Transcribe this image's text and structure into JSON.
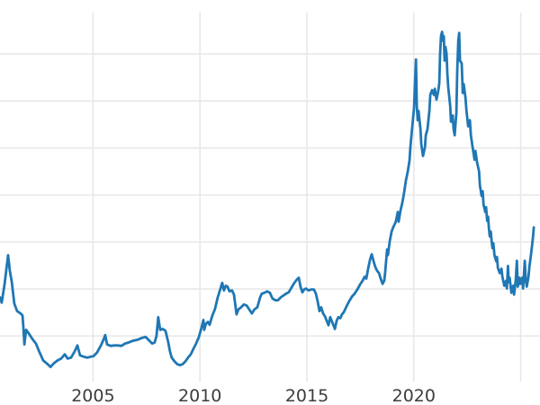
{
  "colors": {
    "line": "#1f77b4",
    "grid": "#e8e8e8",
    "tick_label": "#3d3d3d",
    "background": "#ffffff"
  },
  "chart_data": {
    "type": "line",
    "title": "",
    "xlabel": "",
    "ylabel": "",
    "grid": true,
    "legend": false,
    "x_axis": {
      "tick_labels": [
        "2005",
        "2010",
        "2015",
        "2020"
      ],
      "tick_values": [
        2005,
        2010,
        2015,
        2020
      ],
      "gridline_values": [
        2005,
        2010,
        2015,
        2020,
        2025
      ],
      "range": [
        2000.65,
        2025.9
      ]
    },
    "y_axis": {
      "tick_labels_visible": false,
      "unit": "gridline-units (axis labels cropped out of view)",
      "gridline_values": [
        1,
        2,
        3,
        4,
        5,
        6,
        7
      ],
      "range": [
        0.03,
        7.88
      ]
    },
    "series": [
      {
        "name": "",
        "color": "#1f77b4",
        "points": [
          [
            2000.65,
            1.82
          ],
          [
            2000.73,
            1.71
          ],
          [
            2000.86,
            2.09
          ],
          [
            2000.94,
            2.39
          ],
          [
            2001.03,
            2.72
          ],
          [
            2001.11,
            2.39
          ],
          [
            2001.2,
            2.15
          ],
          [
            2001.32,
            1.69
          ],
          [
            2001.45,
            1.53
          ],
          [
            2001.58,
            1.49
          ],
          [
            2001.7,
            1.44
          ],
          [
            2001.74,
            1.21
          ],
          [
            2001.79,
            0.82
          ],
          [
            2001.87,
            1.13
          ],
          [
            2002.0,
            1.05
          ],
          [
            2002.16,
            0.94
          ],
          [
            2002.33,
            0.84
          ],
          [
            2002.5,
            0.65
          ],
          [
            2002.67,
            0.48
          ],
          [
            2002.88,
            0.4
          ],
          [
            2003.01,
            0.34
          ],
          [
            2003.17,
            0.42
          ],
          [
            2003.34,
            0.48
          ],
          [
            2003.51,
            0.52
          ],
          [
            2003.68,
            0.61
          ],
          [
            2003.81,
            0.52
          ],
          [
            2003.97,
            0.54
          ],
          [
            2004.14,
            0.67
          ],
          [
            2004.27,
            0.8
          ],
          [
            2004.39,
            0.59
          ],
          [
            2004.56,
            0.56
          ],
          [
            2004.73,
            0.54
          ],
          [
            2004.9,
            0.56
          ],
          [
            2005.02,
            0.57
          ],
          [
            2005.19,
            0.65
          ],
          [
            2005.36,
            0.79
          ],
          [
            2005.49,
            0.92
          ],
          [
            2005.57,
            1.02
          ],
          [
            2005.66,
            0.82
          ],
          [
            2005.82,
            0.79
          ],
          [
            2005.99,
            0.8
          ],
          [
            2006.16,
            0.8
          ],
          [
            2006.33,
            0.79
          ],
          [
            2006.5,
            0.84
          ],
          [
            2006.66,
            0.86
          ],
          [
            2006.87,
            0.9
          ],
          [
            2007.08,
            0.92
          ],
          [
            2007.29,
            0.96
          ],
          [
            2007.46,
            0.98
          ],
          [
            2007.59,
            0.92
          ],
          [
            2007.76,
            0.84
          ],
          [
            2007.88,
            0.86
          ],
          [
            2007.97,
            1.0
          ],
          [
            2008.05,
            1.4
          ],
          [
            2008.14,
            1.13
          ],
          [
            2008.26,
            1.15
          ],
          [
            2008.39,
            1.11
          ],
          [
            2008.52,
            0.86
          ],
          [
            2008.6,
            0.67
          ],
          [
            2008.68,
            0.54
          ],
          [
            2008.81,
            0.46
          ],
          [
            2008.94,
            0.4
          ],
          [
            2009.06,
            0.38
          ],
          [
            2009.19,
            0.4
          ],
          [
            2009.32,
            0.46
          ],
          [
            2009.44,
            0.54
          ],
          [
            2009.57,
            0.61
          ],
          [
            2009.7,
            0.73
          ],
          [
            2009.82,
            0.84
          ],
          [
            2009.95,
            0.98
          ],
          [
            2010.07,
            1.17
          ],
          [
            2010.16,
            1.34
          ],
          [
            2010.2,
            1.13
          ],
          [
            2010.28,
            1.26
          ],
          [
            2010.37,
            1.3
          ],
          [
            2010.45,
            1.24
          ],
          [
            2010.58,
            1.44
          ],
          [
            2010.7,
            1.57
          ],
          [
            2010.83,
            1.82
          ],
          [
            2010.96,
            2.01
          ],
          [
            2011.04,
            2.13
          ],
          [
            2011.12,
            1.97
          ],
          [
            2011.21,
            2.07
          ],
          [
            2011.29,
            2.05
          ],
          [
            2011.38,
            1.95
          ],
          [
            2011.5,
            1.97
          ],
          [
            2011.59,
            1.88
          ],
          [
            2011.71,
            1.46
          ],
          [
            2011.8,
            1.57
          ],
          [
            2011.92,
            1.61
          ],
          [
            2012.05,
            1.67
          ],
          [
            2012.18,
            1.65
          ],
          [
            2012.3,
            1.57
          ],
          [
            2012.43,
            1.48
          ],
          [
            2012.55,
            1.57
          ],
          [
            2012.68,
            1.61
          ],
          [
            2012.81,
            1.82
          ],
          [
            2012.89,
            1.9
          ],
          [
            2013.02,
            1.92
          ],
          [
            2013.14,
            1.95
          ],
          [
            2013.27,
            1.92
          ],
          [
            2013.39,
            1.8
          ],
          [
            2013.52,
            1.76
          ],
          [
            2013.65,
            1.76
          ],
          [
            2013.77,
            1.82
          ],
          [
            2013.9,
            1.86
          ],
          [
            2014.03,
            1.9
          ],
          [
            2014.15,
            1.93
          ],
          [
            2014.28,
            2.03
          ],
          [
            2014.41,
            2.13
          ],
          [
            2014.53,
            2.2
          ],
          [
            2014.62,
            2.24
          ],
          [
            2014.7,
            2.05
          ],
          [
            2014.79,
            1.93
          ],
          [
            2014.87,
            1.99
          ],
          [
            2014.96,
            2.01
          ],
          [
            2015.08,
            1.97
          ],
          [
            2015.21,
            1.99
          ],
          [
            2015.33,
            1.99
          ],
          [
            2015.42,
            1.9
          ],
          [
            2015.5,
            1.74
          ],
          [
            2015.59,
            1.53
          ],
          [
            2015.67,
            1.61
          ],
          [
            2015.76,
            1.48
          ],
          [
            2015.84,
            1.42
          ],
          [
            2015.93,
            1.32
          ],
          [
            2016.01,
            1.23
          ],
          [
            2016.09,
            1.4
          ],
          [
            2016.18,
            1.3
          ],
          [
            2016.26,
            1.21
          ],
          [
            2016.31,
            1.15
          ],
          [
            2016.39,
            1.32
          ],
          [
            2016.47,
            1.4
          ],
          [
            2016.56,
            1.38
          ],
          [
            2016.64,
            1.46
          ],
          [
            2016.73,
            1.51
          ],
          [
            2016.85,
            1.63
          ],
          [
            2016.98,
            1.74
          ],
          [
            2017.11,
            1.84
          ],
          [
            2017.23,
            1.9
          ],
          [
            2017.36,
            1.99
          ],
          [
            2017.48,
            2.09
          ],
          [
            2017.61,
            2.18
          ],
          [
            2017.7,
            2.26
          ],
          [
            2017.78,
            2.22
          ],
          [
            2017.86,
            2.43
          ],
          [
            2017.95,
            2.62
          ],
          [
            2018.03,
            2.74
          ],
          [
            2018.12,
            2.59
          ],
          [
            2018.2,
            2.47
          ],
          [
            2018.28,
            2.39
          ],
          [
            2018.37,
            2.34
          ],
          [
            2018.45,
            2.22
          ],
          [
            2018.54,
            2.11
          ],
          [
            2018.62,
            2.18
          ],
          [
            2018.66,
            2.36
          ],
          [
            2018.75,
            2.84
          ],
          [
            2018.79,
            2.72
          ],
          [
            2018.87,
            3.01
          ],
          [
            2018.96,
            3.22
          ],
          [
            2019.04,
            3.32
          ],
          [
            2019.13,
            3.4
          ],
          [
            2019.17,
            3.46
          ],
          [
            2019.25,
            3.64
          ],
          [
            2019.29,
            3.43
          ],
          [
            2019.38,
            3.68
          ],
          [
            2019.46,
            3.83
          ],
          [
            2019.55,
            4.06
          ],
          [
            2019.63,
            4.31
          ],
          [
            2019.72,
            4.5
          ],
          [
            2019.8,
            4.73
          ],
          [
            2019.84,
            5.02
          ],
          [
            2019.93,
            5.46
          ],
          [
            2020.01,
            5.84
          ],
          [
            2020.1,
            6.88
          ],
          [
            2020.14,
            5.9
          ],
          [
            2020.18,
            5.59
          ],
          [
            2020.22,
            5.79
          ],
          [
            2020.31,
            5.4
          ],
          [
            2020.35,
            5.08
          ],
          [
            2020.43,
            4.83
          ],
          [
            2020.52,
            5.02
          ],
          [
            2020.56,
            5.27
          ],
          [
            2020.64,
            5.4
          ],
          [
            2020.73,
            5.79
          ],
          [
            2020.77,
            6.13
          ],
          [
            2020.85,
            6.23
          ],
          [
            2020.94,
            6.13
          ],
          [
            2020.98,
            6.26
          ],
          [
            2021.06,
            6.03
          ],
          [
            2021.15,
            6.23
          ],
          [
            2021.19,
            6.38
          ],
          [
            2021.23,
            7.0
          ],
          [
            2021.27,
            7.38
          ],
          [
            2021.32,
            7.47
          ],
          [
            2021.36,
            7.28
          ],
          [
            2021.4,
            7.38
          ],
          [
            2021.44,
            6.86
          ],
          [
            2021.48,
            7.15
          ],
          [
            2021.53,
            7.0
          ],
          [
            2021.57,
            6.57
          ],
          [
            2021.61,
            6.28
          ],
          [
            2021.7,
            5.9
          ],
          [
            2021.74,
            5.56
          ],
          [
            2021.82,
            5.69
          ],
          [
            2021.86,
            5.4
          ],
          [
            2021.91,
            5.27
          ],
          [
            2021.99,
            5.75
          ],
          [
            2022.03,
            6.61
          ],
          [
            2022.08,
            7.28
          ],
          [
            2022.12,
            7.45
          ],
          [
            2022.16,
            6.86
          ],
          [
            2022.24,
            6.8
          ],
          [
            2022.29,
            6.17
          ],
          [
            2022.33,
            6.36
          ],
          [
            2022.41,
            6.09
          ],
          [
            2022.46,
            5.79
          ],
          [
            2022.54,
            5.46
          ],
          [
            2022.62,
            5.59
          ],
          [
            2022.67,
            5.27
          ],
          [
            2022.75,
            5.02
          ],
          [
            2022.84,
            4.75
          ],
          [
            2022.88,
            4.94
          ],
          [
            2022.96,
            4.69
          ],
          [
            2023.05,
            4.5
          ],
          [
            2023.09,
            4.21
          ],
          [
            2023.17,
            3.98
          ],
          [
            2023.22,
            4.08
          ],
          [
            2023.26,
            3.79
          ],
          [
            2023.34,
            3.64
          ],
          [
            2023.38,
            3.74
          ],
          [
            2023.43,
            3.45
          ],
          [
            2023.47,
            3.54
          ],
          [
            2023.51,
            3.3
          ],
          [
            2023.55,
            3.12
          ],
          [
            2023.6,
            3.22
          ],
          [
            2023.64,
            3.01
          ],
          [
            2023.68,
            2.87
          ],
          [
            2023.72,
            2.97
          ],
          [
            2023.77,
            2.72
          ],
          [
            2023.85,
            2.59
          ],
          [
            2023.89,
            2.68
          ],
          [
            2023.93,
            2.45
          ],
          [
            2024.02,
            2.34
          ],
          [
            2024.1,
            2.43
          ],
          [
            2024.14,
            2.26
          ],
          [
            2024.23,
            2.07
          ],
          [
            2024.31,
            2.17
          ],
          [
            2024.35,
            2.01
          ],
          [
            2024.4,
            2.49
          ],
          [
            2024.44,
            2.15
          ],
          [
            2024.48,
            2.24
          ],
          [
            2024.56,
            1.92
          ],
          [
            2024.65,
            2.07
          ],
          [
            2024.69,
            1.88
          ],
          [
            2024.77,
            2.2
          ],
          [
            2024.82,
            2.6
          ],
          [
            2024.86,
            2.05
          ],
          [
            2024.94,
            2.24
          ],
          [
            2024.98,
            2.11
          ],
          [
            2025.07,
            2.24
          ],
          [
            2025.11,
            2.01
          ],
          [
            2025.19,
            2.6
          ],
          [
            2025.24,
            2.17
          ],
          [
            2025.28,
            2.05
          ],
          [
            2025.36,
            2.26
          ],
          [
            2025.4,
            2.45
          ],
          [
            2025.49,
            2.78
          ],
          [
            2025.57,
            3.1
          ],
          [
            2025.61,
            3.31
          ]
        ]
      }
    ]
  }
}
